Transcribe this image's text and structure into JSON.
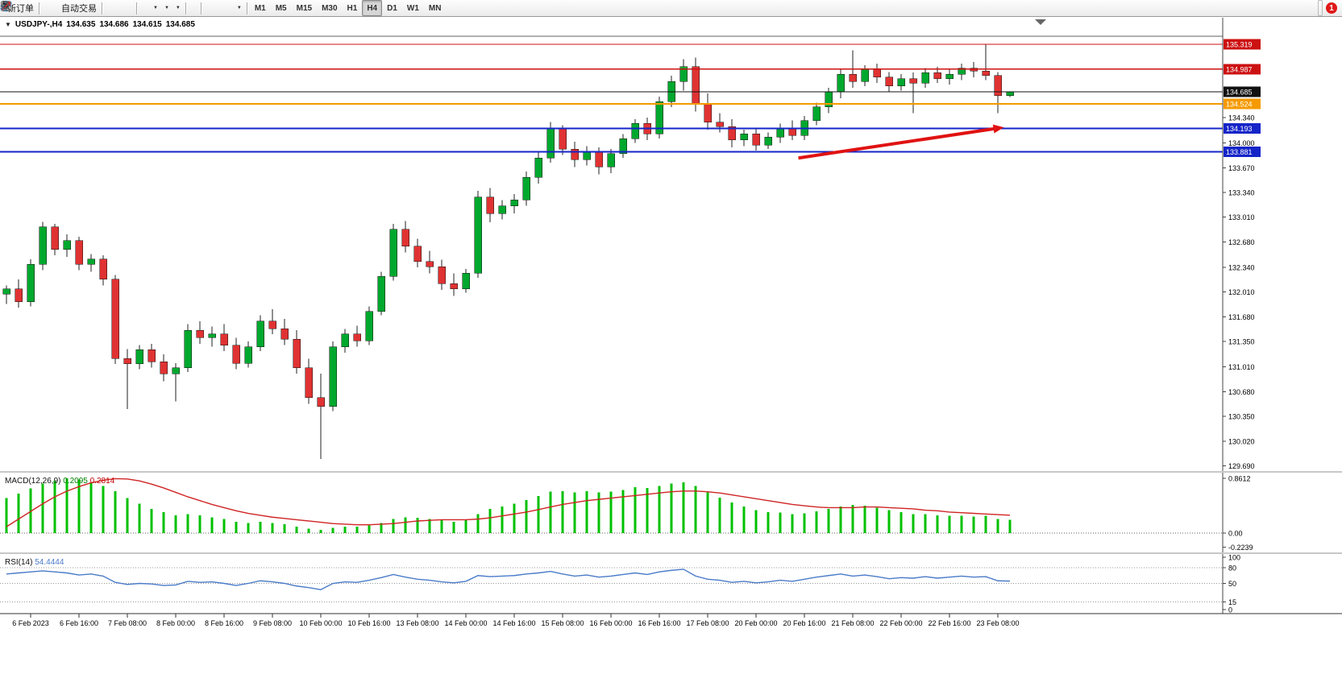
{
  "toolbar": {
    "buttons": [
      {
        "name": "new-order-button",
        "icon": "new-order",
        "label": "新订单"
      },
      {
        "sep": true
      },
      {
        "name": "metaquotes-button",
        "icon": "mq-logo"
      },
      {
        "name": "chart-window-button",
        "icon": "chart-window"
      },
      {
        "name": "market-watch-button",
        "icon": "globe"
      },
      {
        "name": "autotrading-button",
        "icon": "play",
        "label": "自动交易"
      },
      {
        "sep": true
      },
      {
        "name": "bar-chart-button",
        "icon": "bars"
      },
      {
        "name": "candlestick-chart-button",
        "icon": "candles"
      },
      {
        "name": "line-chart-button",
        "icon": "line"
      },
      {
        "name": "zoom-in-button",
        "icon": "zoom-in"
      },
      {
        "name": "zoom-out-button",
        "icon": "zoom-out"
      },
      {
        "name": "indicators-button",
        "icon": "indicators"
      },
      {
        "sep": true
      },
      {
        "name": "auto-scroll-button",
        "icon": "auto-scroll"
      },
      {
        "name": "chart-shift-button",
        "icon": "chart-shift"
      },
      {
        "name": "new-chart-button",
        "icon": "new-chart",
        "dropdown": true
      },
      {
        "name": "periods-button",
        "icon": "clock",
        "dropdown": true
      },
      {
        "name": "templates-button",
        "icon": "template",
        "dropdown": true
      },
      {
        "sep": true
      },
      {
        "name": "cursor-button",
        "icon": "cursor"
      },
      {
        "name": "crosshair-button",
        "icon": "crosshair"
      },
      {
        "sep": true
      },
      {
        "name": "vertical-line-button",
        "icon": "vline"
      },
      {
        "name": "horizontal-line-button",
        "icon": "hline"
      },
      {
        "name": "trendline-button",
        "icon": "trendline"
      },
      {
        "name": "channel-button",
        "icon": "channel"
      },
      {
        "name": "fibonacci-button",
        "icon": "fibonacci"
      },
      {
        "name": "text-label-button",
        "icon": "text"
      },
      {
        "name": "arrows-button",
        "icon": "arrows",
        "dropdown": true
      },
      {
        "sep": true
      }
    ],
    "timeframes": {
      "items": [
        "M1",
        "M5",
        "M15",
        "M30",
        "H1",
        "H4",
        "D1",
        "W1",
        "MN"
      ],
      "active": "H4"
    },
    "notification": {
      "count": "1"
    }
  },
  "symbol_header": {
    "expander": "▼",
    "symbol": "USDJPY-,H4",
    "open": "134.635",
    "high": "134.686",
    "low": "134.615",
    "close": "134.685"
  },
  "colors": {
    "candle_up": "#00a82e",
    "candle_down": "#e03232",
    "macd_hist": "#00c000",
    "macd_signal": "#d02525",
    "rsi_line": "#4a7bc8",
    "line_red": "#cc1111",
    "line_blue": "#1525c8",
    "line_orange": "#f59a00",
    "current_price": "#111111",
    "arrow": "#e01212"
  },
  "chart_data": {
    "type": "candlestick",
    "symbol": "USDJPY-",
    "timeframe": "H4",
    "ohlc_display": {
      "open": "134.635",
      "high": "134.686",
      "low": "134.615",
      "close": "134.685"
    },
    "price_axis_labels": [
      "134.340",
      "134.000",
      "133.670",
      "133.340",
      "133.010",
      "132.680",
      "132.340",
      "132.010",
      "131.680",
      "131.350",
      "131.010",
      "130.680",
      "130.350",
      "130.020",
      "129.690"
    ],
    "time_labels": [
      "6 Feb 2023",
      "6 Feb 16:00",
      "7 Feb 08:00",
      "8 Feb 00:00",
      "8 Feb 16:00",
      "9 Feb 08:00",
      "10 Feb 00:00",
      "10 Feb 16:00",
      "13 Feb 08:00",
      "14 Feb 00:00",
      "14 Feb 16:00",
      "15 Feb 08:00",
      "16 Feb 00:00",
      "16 Feb 16:00",
      "17 Feb 08:00",
      "20 Feb 00:00",
      "20 Feb 16:00",
      "21 Feb 08:00",
      "22 Feb 00:00",
      "22 Feb 16:00",
      "23 Feb 08:00"
    ],
    "hlines": [
      {
        "price": 135.425,
        "color": "#606060",
        "width": 1,
        "label": ""
      },
      {
        "price": 135.319,
        "color": "#cc1111",
        "width": 1,
        "label": "135.319"
      },
      {
        "price": 134.987,
        "color": "#cc1111",
        "width": 1.5,
        "label": "134.987"
      },
      {
        "price": 134.524,
        "color": "#f59a00",
        "width": 2,
        "label": "134.524"
      },
      {
        "price": 134.193,
        "color": "#1525c8",
        "width": 2,
        "label": "134.193"
      },
      {
        "price": 133.881,
        "color": "#1525c8",
        "width": 2,
        "label": "133.881"
      }
    ],
    "current_price": {
      "value": 134.685,
      "label": "134.685",
      "color": "#111111"
    },
    "trend_arrow": {
      "from_index": 65.5,
      "from_price": 133.8,
      "to_index": 82.5,
      "to_price": 134.21
    },
    "candles": [
      [
        131.98,
        132.1,
        131.85,
        132.05
      ],
      [
        132.05,
        132.18,
        131.8,
        131.88
      ],
      [
        131.88,
        132.45,
        131.82,
        132.38
      ],
      [
        132.38,
        132.95,
        132.3,
        132.88
      ],
      [
        132.88,
        132.92,
        132.5,
        132.58
      ],
      [
        132.58,
        132.78,
        132.48,
        132.7
      ],
      [
        132.7,
        132.75,
        132.3,
        132.38
      ],
      [
        132.38,
        132.52,
        132.28,
        132.45
      ],
      [
        132.45,
        132.5,
        132.1,
        132.18
      ],
      [
        132.18,
        132.24,
        131.05,
        131.12
      ],
      [
        131.12,
        131.25,
        130.45,
        131.05
      ],
      [
        131.05,
        131.3,
        130.98,
        131.24
      ],
      [
        131.24,
        131.32,
        131.0,
        131.08
      ],
      [
        131.08,
        131.18,
        130.82,
        130.92
      ],
      [
        130.92,
        131.06,
        130.55,
        131.0
      ],
      [
        131.0,
        131.58,
        130.94,
        131.5
      ],
      [
        131.5,
        131.62,
        131.32,
        131.4
      ],
      [
        131.4,
        131.55,
        131.28,
        131.45
      ],
      [
        131.45,
        131.58,
        131.22,
        131.3
      ],
      [
        131.3,
        131.4,
        130.98,
        131.06
      ],
      [
        131.06,
        131.35,
        131.0,
        131.28
      ],
      [
        131.28,
        131.7,
        131.22,
        131.62
      ],
      [
        131.62,
        131.78,
        131.45,
        131.52
      ],
      [
        131.52,
        131.65,
        131.3,
        131.38
      ],
      [
        131.38,
        131.5,
        130.92,
        131.0
      ],
      [
        131.0,
        131.12,
        130.52,
        130.6
      ],
      [
        130.6,
        130.92,
        129.78,
        130.48
      ],
      [
        130.48,
        131.35,
        130.42,
        131.28
      ],
      [
        131.28,
        131.52,
        131.2,
        131.45
      ],
      [
        131.45,
        131.56,
        131.28,
        131.36
      ],
      [
        131.36,
        131.82,
        131.3,
        131.75
      ],
      [
        131.75,
        132.28,
        131.7,
        132.22
      ],
      [
        132.22,
        132.92,
        132.16,
        132.85
      ],
      [
        132.85,
        132.96,
        132.54,
        132.62
      ],
      [
        132.62,
        132.72,
        132.34,
        132.42
      ],
      [
        132.42,
        132.56,
        132.26,
        132.35
      ],
      [
        132.35,
        132.44,
        132.04,
        132.12
      ],
      [
        132.12,
        132.26,
        131.96,
        132.05
      ],
      [
        132.05,
        132.32,
        132.0,
        132.26
      ],
      [
        132.26,
        133.36,
        132.2,
        133.28
      ],
      [
        133.28,
        133.4,
        132.94,
        133.06
      ],
      [
        133.06,
        133.24,
        132.98,
        133.16
      ],
      [
        133.16,
        133.32,
        133.06,
        133.24
      ],
      [
        133.24,
        133.62,
        133.16,
        133.54
      ],
      [
        133.54,
        133.88,
        133.46,
        133.8
      ],
      [
        133.8,
        134.28,
        133.74,
        134.2
      ],
      [
        134.2,
        134.24,
        133.84,
        133.92
      ],
      [
        133.92,
        134.02,
        133.68,
        133.78
      ],
      [
        133.78,
        133.96,
        133.7,
        133.88
      ],
      [
        133.88,
        133.94,
        133.58,
        133.68
      ],
      [
        133.68,
        133.92,
        133.6,
        133.86
      ],
      [
        133.86,
        134.12,
        133.8,
        134.06
      ],
      [
        134.06,
        134.32,
        134.0,
        134.26
      ],
      [
        134.26,
        134.34,
        134.04,
        134.12
      ],
      [
        134.12,
        134.62,
        134.06,
        134.55
      ],
      [
        134.55,
        134.9,
        134.48,
        134.82
      ],
      [
        134.82,
        135.12,
        134.7,
        135.02
      ],
      [
        135.02,
        135.14,
        134.42,
        134.52
      ],
      [
        134.52,
        134.66,
        134.18,
        134.28
      ],
      [
        134.28,
        134.4,
        134.14,
        134.22
      ],
      [
        134.22,
        134.32,
        133.94,
        134.04
      ],
      [
        134.04,
        134.18,
        133.96,
        134.12
      ],
      [
        134.12,
        134.2,
        133.9,
        133.97
      ],
      [
        133.97,
        134.14,
        133.92,
        134.08
      ],
      [
        134.08,
        134.26,
        134.0,
        134.2
      ],
      [
        134.2,
        134.3,
        134.04,
        134.1
      ],
      [
        134.1,
        134.36,
        134.04,
        134.3
      ],
      [
        134.3,
        134.54,
        134.24,
        134.48
      ],
      [
        134.48,
        134.74,
        134.4,
        134.68
      ],
      [
        134.68,
        134.98,
        134.6,
        134.92
      ],
      [
        134.92,
        135.24,
        134.74,
        134.82
      ],
      [
        134.82,
        135.04,
        134.76,
        134.98
      ],
      [
        134.98,
        135.06,
        134.8,
        134.88
      ],
      [
        134.88,
        134.95,
        134.68,
        134.76
      ],
      [
        134.76,
        134.92,
        134.7,
        134.86
      ],
      [
        134.86,
        134.94,
        134.4,
        134.8
      ],
      [
        134.8,
        135.0,
        134.74,
        134.94
      ],
      [
        134.94,
        135.02,
        134.8,
        134.86
      ],
      [
        134.86,
        134.98,
        134.78,
        134.92
      ],
      [
        134.92,
        135.06,
        134.84,
        135.0
      ],
      [
        135.0,
        135.08,
        134.88,
        134.96
      ],
      [
        134.96,
        135.32,
        134.84,
        134.9
      ],
      [
        134.9,
        134.95,
        134.4,
        134.635
      ],
      [
        134.635,
        134.686,
        134.615,
        134.685
      ]
    ],
    "macd": {
      "label": "MACD(12,26,9)",
      "values_display": [
        "0.2095",
        "0.2814"
      ],
      "axis_labels": [
        "0.8612",
        "0.00",
        "-0.2239"
      ],
      "histogram": [
        0.55,
        0.62,
        0.7,
        0.78,
        0.82,
        0.86,
        0.84,
        0.8,
        0.74,
        0.66,
        0.55,
        0.46,
        0.38,
        0.33,
        0.28,
        0.3,
        0.28,
        0.25,
        0.22,
        0.18,
        0.16,
        0.18,
        0.16,
        0.14,
        0.1,
        0.07,
        0.05,
        0.08,
        0.1,
        0.1,
        0.12,
        0.16,
        0.22,
        0.25,
        0.24,
        0.22,
        0.2,
        0.18,
        0.2,
        0.3,
        0.38,
        0.42,
        0.46,
        0.52,
        0.58,
        0.65,
        0.66,
        0.64,
        0.66,
        0.64,
        0.65,
        0.68,
        0.72,
        0.71,
        0.74,
        0.78,
        0.8,
        0.74,
        0.64,
        0.56,
        0.48,
        0.42,
        0.36,
        0.33,
        0.32,
        0.3,
        0.31,
        0.34,
        0.38,
        0.42,
        0.44,
        0.43,
        0.4,
        0.36,
        0.33,
        0.3,
        0.3,
        0.28,
        0.27,
        0.27,
        0.26,
        0.27,
        0.22,
        0.2095
      ],
      "signal": [
        0.1,
        0.22,
        0.34,
        0.46,
        0.57,
        0.66,
        0.73,
        0.79,
        0.83,
        0.855,
        0.85,
        0.82,
        0.77,
        0.71,
        0.64,
        0.57,
        0.51,
        0.45,
        0.4,
        0.35,
        0.31,
        0.28,
        0.25,
        0.23,
        0.21,
        0.19,
        0.17,
        0.15,
        0.14,
        0.13,
        0.13,
        0.14,
        0.15,
        0.17,
        0.19,
        0.2,
        0.21,
        0.21,
        0.21,
        0.22,
        0.24,
        0.27,
        0.3,
        0.33,
        0.37,
        0.41,
        0.45,
        0.48,
        0.51,
        0.53,
        0.55,
        0.57,
        0.59,
        0.61,
        0.63,
        0.65,
        0.66,
        0.66,
        0.65,
        0.63,
        0.6,
        0.57,
        0.54,
        0.51,
        0.48,
        0.45,
        0.43,
        0.41,
        0.4,
        0.4,
        0.4,
        0.41,
        0.41,
        0.4,
        0.39,
        0.38,
        0.36,
        0.35,
        0.33,
        0.32,
        0.31,
        0.3,
        0.29,
        0.2814
      ]
    },
    "rsi": {
      "label": "RSI(14)",
      "value_display": "54.4444",
      "axis_labels": [
        "100",
        "80",
        "50",
        "15",
        "0"
      ],
      "levels": [
        80,
        50,
        15
      ],
      "values": [
        68,
        70,
        72,
        74,
        72,
        70,
        66,
        68,
        64,
        52,
        48,
        50,
        49,
        46,
        47,
        54,
        52,
        53,
        50,
        46,
        50,
        55,
        53,
        50,
        45,
        42,
        38,
        50,
        53,
        52,
        56,
        61,
        67,
        62,
        58,
        56,
        53,
        51,
        54,
        65,
        63,
        64,
        65,
        68,
        70,
        73,
        68,
        64,
        66,
        62,
        64,
        67,
        70,
        67,
        72,
        75,
        77,
        64,
        58,
        56,
        52,
        54,
        51,
        53,
        56,
        54,
        58,
        62,
        65,
        68,
        64,
        66,
        63,
        59,
        61,
        60,
        63,
        60,
        62,
        64,
        62,
        63,
        55,
        54.44
      ]
    }
  }
}
